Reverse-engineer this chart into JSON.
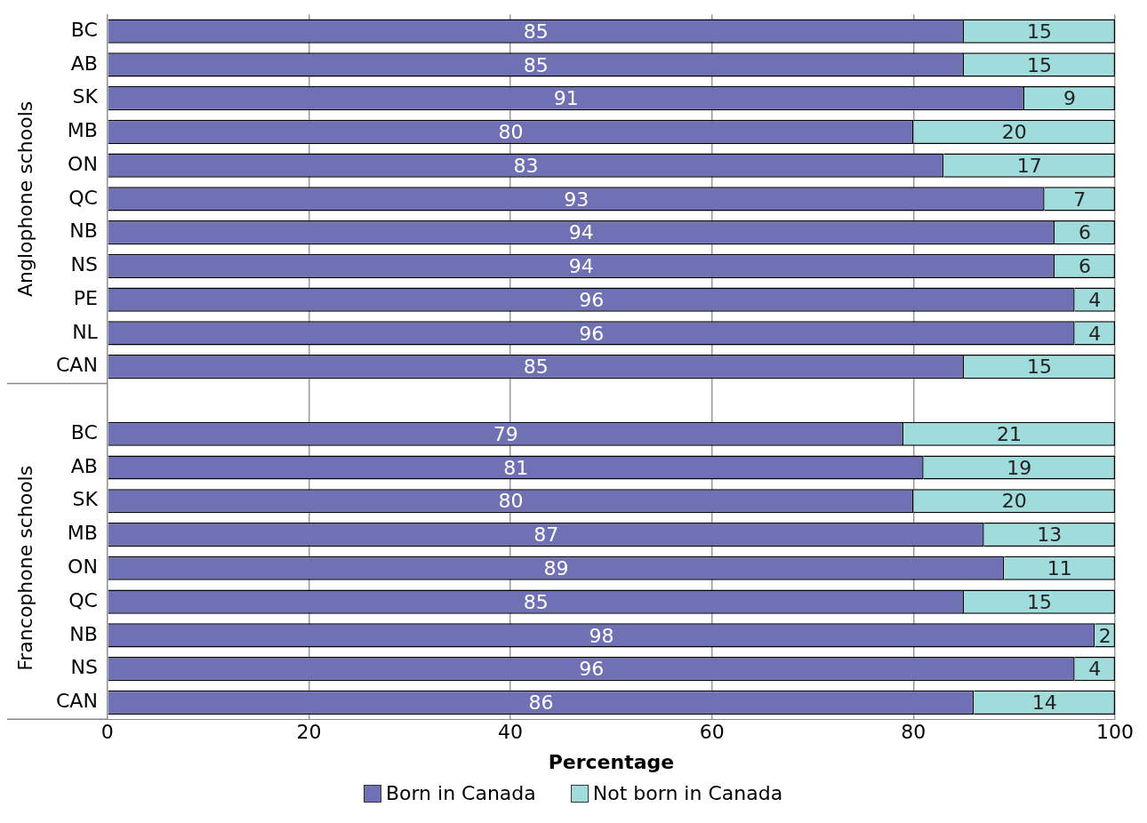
{
  "chart_data": {
    "type": "bar",
    "orientation": "horizontal",
    "stacked": true,
    "categories": [
      "BC",
      "AB",
      "SK",
      "MB",
      "ON",
      "QC",
      "NB",
      "NS",
      "PE",
      "NL",
      "CAN",
      null,
      "BC",
      "AB",
      "SK",
      "MB",
      "ON",
      "QC",
      "NB",
      "NS",
      "CAN"
    ],
    "series": [
      {
        "name": "Born in Canada",
        "color": "#7070b4",
        "values": [
          85,
          85,
          91,
          80,
          83,
          93,
          94,
          94,
          96,
          96,
          85,
          null,
          79,
          81,
          80,
          87,
          89,
          85,
          98,
          96,
          86
        ]
      },
      {
        "name": "Not born in Canada",
        "color": "#a0dcdc",
        "values": [
          15,
          15,
          9,
          20,
          17,
          7,
          6,
          6,
          4,
          4,
          15,
          null,
          21,
          19,
          20,
          13,
          11,
          15,
          2,
          4,
          14
        ]
      }
    ],
    "xlim": [
      0,
      100
    ],
    "xticks": [
      0,
      20,
      40,
      60,
      80,
      100
    ],
    "xlabel": "Percentage",
    "annotations": [
      "Anglophone schools",
      "Francophone schools"
    ],
    "data_labels": true,
    "grid": "x",
    "legend": "bottom"
  }
}
